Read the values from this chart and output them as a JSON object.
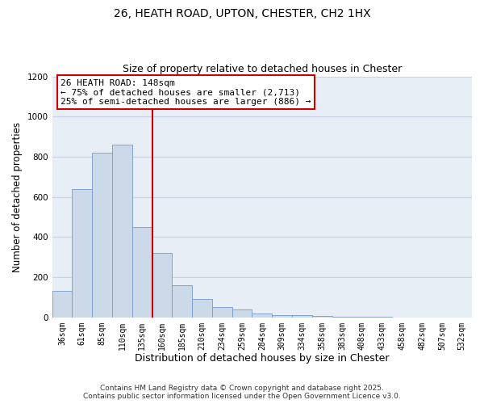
{
  "title_line1": "26, HEATH ROAD, UPTON, CHESTER, CH2 1HX",
  "title_line2": "Size of property relative to detached houses in Chester",
  "xlabel": "Distribution of detached houses by size in Chester",
  "ylabel": "Number of detached properties",
  "bar_color": "#ccd9e8",
  "bar_edge_color": "#7799cc",
  "categories": [
    "36sqm",
    "61sqm",
    "85sqm",
    "110sqm",
    "135sqm",
    "160sqm",
    "185sqm",
    "210sqm",
    "234sqm",
    "259sqm",
    "284sqm",
    "309sqm",
    "334sqm",
    "358sqm",
    "383sqm",
    "408sqm",
    "433sqm",
    "458sqm",
    "482sqm",
    "507sqm",
    "532sqm"
  ],
  "values": [
    130,
    640,
    820,
    860,
    450,
    320,
    160,
    90,
    50,
    40,
    20,
    10,
    10,
    5,
    3,
    2,
    1,
    0,
    0,
    0,
    0
  ],
  "vline_x": 4.5,
  "vline_color": "#cc0000",
  "annotation_title": "26 HEATH ROAD: 148sqm",
  "annotation_line1": "← 75% of detached houses are smaller (2,713)",
  "annotation_line2": "25% of semi-detached houses are larger (886) →",
  "annotation_box_edge": "#cc0000",
  "ylim": [
    0,
    1200
  ],
  "yticks": [
    0,
    200,
    400,
    600,
    800,
    1000,
    1200
  ],
  "grid_color": "#c8d4e4",
  "background_color": "#e8eef6",
  "footer_line1": "Contains HM Land Registry data © Crown copyright and database right 2025.",
  "footer_line2": "Contains public sector information licensed under the Open Government Licence v3.0.",
  "title_fontsize": 10,
  "subtitle_fontsize": 9,
  "axis_label_fontsize": 8.5,
  "tick_fontsize": 7,
  "annotation_fontsize": 8,
  "footer_fontsize": 6.5
}
